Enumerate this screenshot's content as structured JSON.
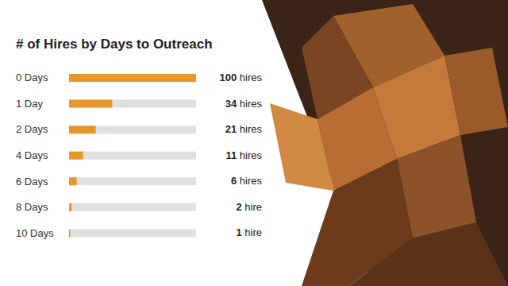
{
  "chart_data": {
    "type": "bar",
    "title": "# of Hires by Days to Outreach",
    "orientation": "horizontal",
    "categories": [
      "0 Days",
      "1 Day",
      "2 Days",
      "4 Days",
      "6 Days",
      "8 Days",
      "10 Days"
    ],
    "values": [
      100,
      34,
      21,
      11,
      6,
      2,
      1
    ],
    "value_labels": [
      "100 hires",
      "34 hires",
      "21 hires",
      "11 hires",
      "6 hires",
      "2 hire",
      "1 hire"
    ],
    "color": "#e8962a",
    "xlim": [
      0,
      100
    ],
    "data_labels": true,
    "tick_labels": false,
    "grid": false
  }
}
